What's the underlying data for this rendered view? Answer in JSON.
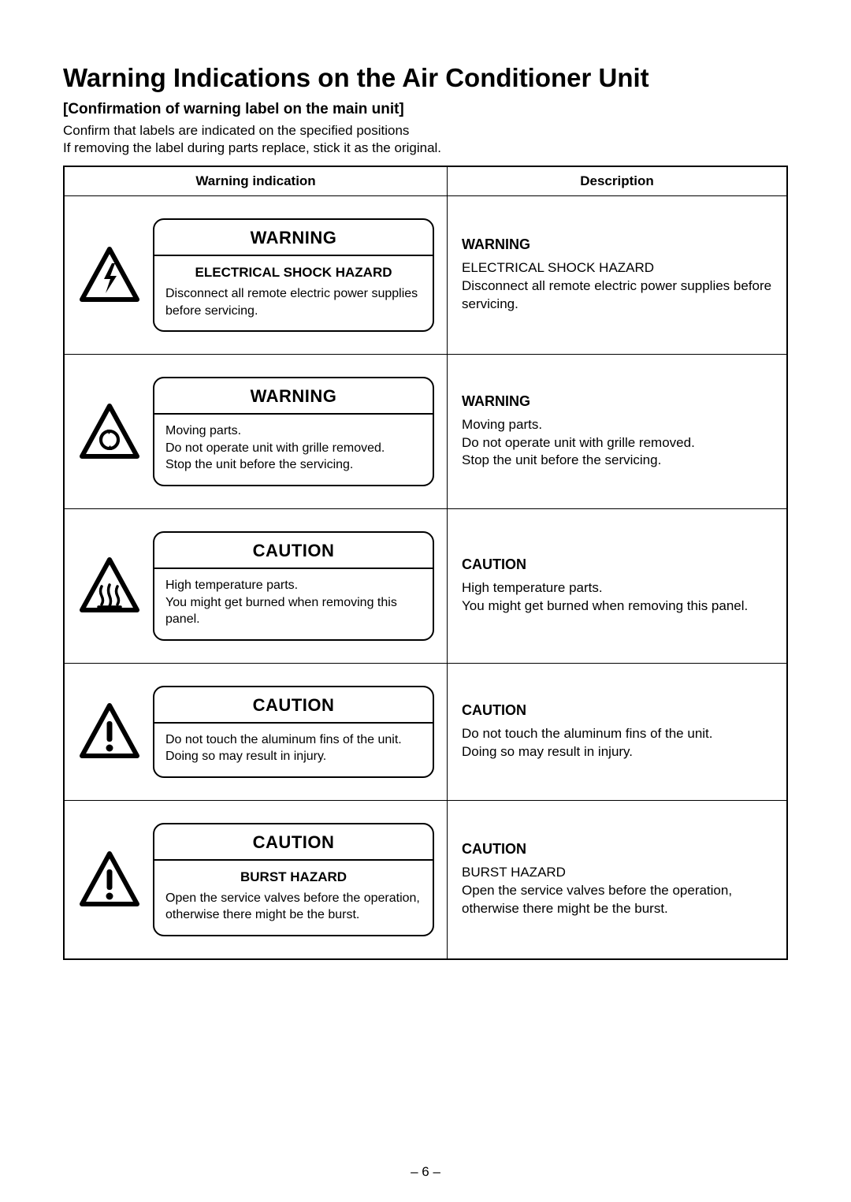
{
  "page_title": "Warning Indications on the Air Conditioner Unit",
  "subtitle": "[Confirmation of warning label on the main unit]",
  "intro_lines": [
    "Confirm that labels are indicated on the specified positions",
    "If removing the label during parts replace, stick it as the original."
  ],
  "headers": {
    "left": "Warning indication",
    "right": "Description"
  },
  "rows": [
    {
      "icon": "shock",
      "label_title": "WARNING",
      "label_sub": "ELECTRICAL SHOCK HAZARD",
      "label_body": "Disconnect all remote electric power supplies before servicing.",
      "desc_title": "WARNING",
      "desc_body": "ELECTRICAL SHOCK HAZARD\nDisconnect all remote electric power supplies before servicing."
    },
    {
      "icon": "moving",
      "label_title": "WARNING",
      "label_sub": "",
      "label_body": "Moving parts.\nDo not operate unit with grille removed.\nStop the unit before the servicing.",
      "desc_title": "WARNING",
      "desc_body": "Moving parts.\nDo not operate unit with grille removed.\nStop the unit before the servicing."
    },
    {
      "icon": "hot",
      "label_title": "CAUTION",
      "label_sub": "",
      "label_body": "High temperature parts.\nYou might get burned when removing this panel.",
      "desc_title": "CAUTION",
      "desc_body": "High temperature parts.\nYou might get burned when removing this panel."
    },
    {
      "icon": "exclaim",
      "label_title": "CAUTION",
      "label_sub": "",
      "label_body": "Do not touch the aluminum fins of the unit.\nDoing so may result in injury.",
      "desc_title": "CAUTION",
      "desc_body": "Do not touch the aluminum fins of the unit.\nDoing so may result in injury."
    },
    {
      "icon": "exclaim",
      "label_title": "CAUTION",
      "label_sub": "BURST HAZARD",
      "label_body": "Open the service valves before the operation, otherwise there might be the burst.",
      "desc_title": "CAUTION",
      "desc_body": "BURST HAZARD\nOpen the service valves before the operation, otherwise there might be the burst."
    }
  ],
  "page_number": "– 6 –",
  "colors": {
    "text": "#000000",
    "background": "#ffffff",
    "border": "#000000"
  }
}
